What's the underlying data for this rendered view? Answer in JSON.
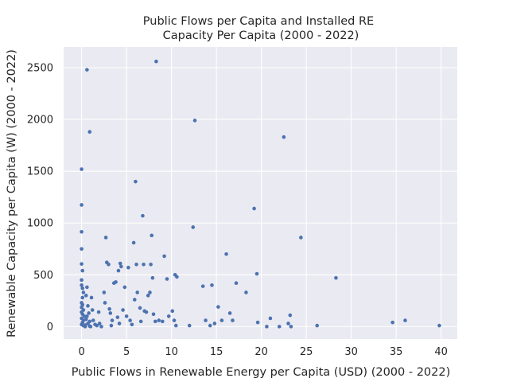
{
  "chart_data": {
    "type": "scatter",
    "title_line1": "Public Flows per Capita and Installed RE",
    "title_line2": "Capacity Per Capita (2000 - 2022)",
    "xlabel": "Public Flows in Renewable Energy per Capita (USD) (2000 - 2022)",
    "ylabel": "Renewable Capacity per Capita (W) (2000 - 2022)",
    "xlim": [
      -2,
      41.8
    ],
    "ylim": [
      -120,
      2700
    ],
    "x_ticks": [
      0,
      5,
      10,
      15,
      20,
      25,
      30,
      35,
      40
    ],
    "y_ticks": [
      0,
      500,
      1000,
      1500,
      2000,
      2500
    ],
    "grid": true,
    "background": "#eaeaf2",
    "marker_color": "#4c72b0",
    "points": [
      [
        0.0,
        1520
      ],
      [
        0.0,
        1175
      ],
      [
        0.0,
        915
      ],
      [
        0.0,
        750
      ],
      [
        0.0,
        605
      ],
      [
        0.1,
        540
      ],
      [
        0.0,
        450
      ],
      [
        0.0,
        400
      ],
      [
        0.1,
        370
      ],
      [
        0.2,
        330
      ],
      [
        0.1,
        280
      ],
      [
        0.0,
        230
      ],
      [
        0.1,
        210
      ],
      [
        0.0,
        185
      ],
      [
        0.2,
        160
      ],
      [
        0.0,
        140
      ],
      [
        0.1,
        120
      ],
      [
        0.3,
        100
      ],
      [
        0.0,
        80
      ],
      [
        0.2,
        60
      ],
      [
        0.1,
        40
      ],
      [
        0.0,
        20
      ],
      [
        0.2,
        10
      ],
      [
        0.4,
        0
      ],
      [
        0.6,
        2480
      ],
      [
        0.9,
        1880
      ],
      [
        0.6,
        380
      ],
      [
        0.5,
        300
      ],
      [
        0.7,
        200
      ],
      [
        0.8,
        130
      ],
      [
        0.6,
        100
      ],
      [
        0.5,
        70
      ],
      [
        0.9,
        50
      ],
      [
        0.7,
        30
      ],
      [
        0.4,
        15
      ],
      [
        0.9,
        5
      ],
      [
        1.0,
        0
      ],
      [
        1.2,
        160
      ],
      [
        1.1,
        280
      ],
      [
        1.3,
        60
      ],
      [
        1.5,
        20
      ],
      [
        1.7,
        10
      ],
      [
        1.9,
        140
      ],
      [
        2.0,
        30
      ],
      [
        2.2,
        0
      ],
      [
        2.5,
        330
      ],
      [
        2.6,
        230
      ],
      [
        2.7,
        860
      ],
      [
        2.8,
        620
      ],
      [
        3.0,
        600
      ],
      [
        3.1,
        170
      ],
      [
        3.2,
        130
      ],
      [
        3.4,
        60
      ],
      [
        3.3,
        10
      ],
      [
        3.6,
        420
      ],
      [
        3.8,
        430
      ],
      [
        4.1,
        540
      ],
      [
        4.3,
        610
      ],
      [
        4.4,
        580
      ],
      [
        4.0,
        90
      ],
      [
        4.2,
        30
      ],
      [
        4.6,
        160
      ],
      [
        4.8,
        380
      ],
      [
        5.0,
        100
      ],
      [
        5.2,
        570
      ],
      [
        5.4,
        60
      ],
      [
        5.6,
        20
      ],
      [
        5.8,
        810
      ],
      [
        5.9,
        260
      ],
      [
        6.0,
        1400
      ],
      [
        6.1,
        600
      ],
      [
        6.2,
        330
      ],
      [
        6.5,
        180
      ],
      [
        6.6,
        50
      ],
      [
        6.8,
        1070
      ],
      [
        6.9,
        600
      ],
      [
        7.0,
        150
      ],
      [
        7.2,
        140
      ],
      [
        7.4,
        300
      ],
      [
        7.6,
        330
      ],
      [
        7.9,
        470
      ],
      [
        7.8,
        880
      ],
      [
        7.7,
        600
      ],
      [
        8.0,
        120
      ],
      [
        8.3,
        2560
      ],
      [
        8.2,
        50
      ],
      [
        8.6,
        60
      ],
      [
        9.0,
        50
      ],
      [
        9.2,
        680
      ],
      [
        9.5,
        460
      ],
      [
        9.7,
        100
      ],
      [
        10.1,
        150
      ],
      [
        10.4,
        500
      ],
      [
        10.6,
        480
      ],
      [
        10.3,
        60
      ],
      [
        10.5,
        10
      ],
      [
        12.0,
        10
      ],
      [
        12.4,
        960
      ],
      [
        12.6,
        1990
      ],
      [
        13.5,
        390
      ],
      [
        13.8,
        60
      ],
      [
        14.3,
        10
      ],
      [
        14.5,
        400
      ],
      [
        14.8,
        30
      ],
      [
        15.2,
        190
      ],
      [
        15.6,
        60
      ],
      [
        16.1,
        700
      ],
      [
        16.5,
        130
      ],
      [
        16.8,
        60
      ],
      [
        17.2,
        420
      ],
      [
        18.3,
        330
      ],
      [
        19.2,
        1140
      ],
      [
        19.5,
        510
      ],
      [
        19.6,
        40
      ],
      [
        20.6,
        0
      ],
      [
        21.0,
        80
      ],
      [
        22.0,
        0
      ],
      [
        22.5,
        1830
      ],
      [
        23.0,
        30
      ],
      [
        23.2,
        110
      ],
      [
        23.3,
        0
      ],
      [
        24.4,
        860
      ],
      [
        26.2,
        10
      ],
      [
        28.3,
        470
      ],
      [
        34.6,
        40
      ],
      [
        36.0,
        60
      ],
      [
        39.8,
        10
      ]
    ]
  }
}
